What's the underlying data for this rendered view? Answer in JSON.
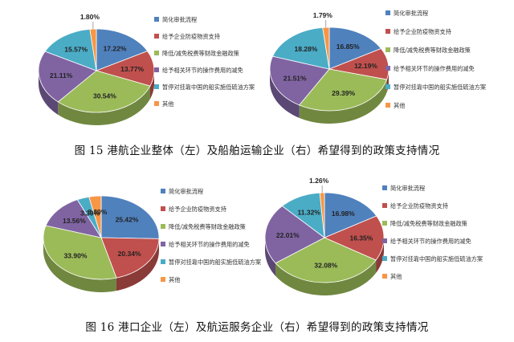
{
  "captions": {
    "fig15": "图 15 港航企业整体（左）及船舶运输企业（右）希望得到的政策支持情况",
    "fig16": "图 16 港口企业（左）及航运服务企业（右）希望得到的政策支持情况"
  },
  "colors": [
    "#4f81bd",
    "#c0504d",
    "#9bbb59",
    "#8064a2",
    "#4bacc6",
    "#f79646"
  ],
  "chart_data": [
    {
      "type": "pie",
      "categories": [
        "简化审批流程",
        "给予企业防疫物资支持",
        "降低/减免税费等财政金融政策",
        "给予相关环节的操作费用的减免",
        "暂停对挂靠中国的船实施低硫油方案",
        "其他"
      ],
      "values": [
        17.22,
        13.77,
        30.54,
        21.11,
        15.57,
        1.8
      ],
      "labels": [
        "17.22%",
        "13.77%",
        "30.54%",
        "21.11%",
        "15.57%",
        "1.80%"
      ]
    },
    {
      "type": "pie",
      "categories": [
        "简化审批流程",
        "给予企业防疫物资支持",
        "降低/减免税费等财政金融政策",
        "给予相关环节的操作费用的减免",
        "暂停对挂靠中国的船实施低硫油方案",
        "其他"
      ],
      "values": [
        16.85,
        12.19,
        29.39,
        21.51,
        18.28,
        1.79
      ],
      "labels": [
        "16.85%",
        "12.19%",
        "29.39%",
        "21.51%",
        "18.28%",
        "1.79%"
      ]
    },
    {
      "type": "pie",
      "categories": [
        "简化审批流程",
        "给予企业防疫物资支持",
        "降低/减免税费等财政金融政策",
        "给予相关环节的操作费用的减免",
        "暂停对挂靠中国的船实施低硫油方案",
        "其他"
      ],
      "values": [
        25.42,
        20.34,
        33.9,
        13.56,
        3.39,
        3.39
      ],
      "labels": [
        "25.42%",
        "20.34%",
        "33.90%",
        "13.56%",
        "3.39%",
        "3.39%"
      ]
    },
    {
      "type": "pie",
      "categories": [
        "简化审批流程",
        "给予企业防疫物资支持",
        "降低/减免税费等财政金融政策",
        "给予相关环节的操作费用的减免",
        "暂停对挂靠中国的船实施低硫油方案",
        "其他"
      ],
      "values": [
        16.98,
        16.35,
        32.08,
        22.01,
        11.32,
        1.26
      ],
      "labels": [
        "16.98%",
        "16.35%",
        "32.08%",
        "22.01%",
        "11.32%",
        "1.26%"
      ]
    }
  ]
}
